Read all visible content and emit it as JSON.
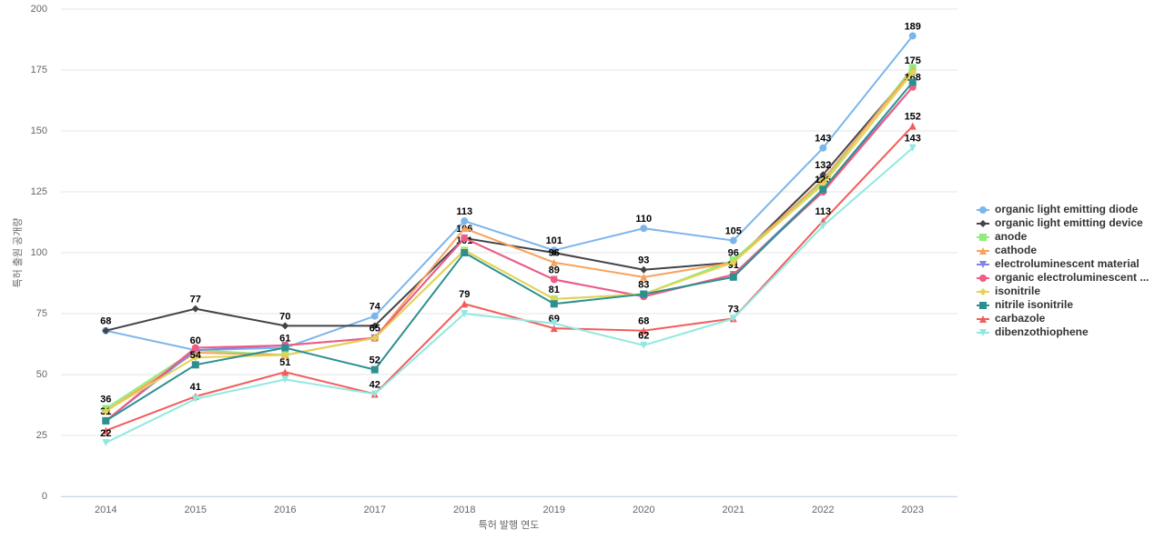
{
  "chart_data": {
    "type": "line",
    "x_label": "특허 발행 연도",
    "y_label": "특허 출원 공개량",
    "categories": [
      "2014",
      "2015",
      "2016",
      "2017",
      "2018",
      "2019",
      "2020",
      "2021",
      "2022",
      "2023"
    ],
    "ylim": [
      0,
      200
    ],
    "yticks": [
      0,
      25,
      50,
      75,
      100,
      125,
      150,
      175,
      200
    ],
    "grid": true,
    "legend": "right",
    "series": [
      {
        "name": "organic light emitting diode",
        "color": "#7cb5ec",
        "values": [
          68,
          60,
          61,
          74,
          113,
          101,
          110,
          105,
          143,
          189
        ]
      },
      {
        "name": "organic light emitting device",
        "color": "#434348",
        "values": [
          68,
          77,
          70,
          70,
          106,
          100,
          93,
          96,
          132,
          175
        ]
      },
      {
        "name": "anode",
        "color": "#90ed7d",
        "values": [
          36,
          60,
          58,
          65,
          101,
          81,
          83,
          97,
          129,
          176
        ]
      },
      {
        "name": "cathode",
        "color": "#f7a35c",
        "values": [
          35,
          59,
          58,
          65,
          110,
          96,
          90,
          96,
          130,
          175
        ]
      },
      {
        "name": "electroluminescent material",
        "color": "#8085e9",
        "values": [
          31,
          60,
          62,
          65,
          106,
          89,
          82,
          91,
          126,
          168
        ]
      },
      {
        "name": "organic electroluminescent ...",
        "color": "#f15c80",
        "values": [
          31,
          61,
          62,
          65,
          106,
          89,
          82,
          91,
          125,
          168
        ]
      },
      {
        "name": "isonitrile",
        "color": "#e4d354",
        "values": [
          35,
          57,
          58,
          65,
          101,
          81,
          83,
          96,
          128,
          174
        ]
      },
      {
        "name": "nitrile isonitrile",
        "color": "#2b908f",
        "values": [
          31,
          54,
          61,
          52,
          100,
          79,
          83,
          90,
          126,
          170
        ]
      },
      {
        "name": "carbazole",
        "color": "#f45b5b",
        "values": [
          27,
          41,
          51,
          42,
          79,
          69,
          68,
          73,
          113,
          152
        ]
      },
      {
        "name": "dibenzothiophene",
        "color": "#91e8e1",
        "values": [
          22,
          40,
          48,
          42,
          75,
          71,
          62,
          73,
          111,
          143
        ]
      }
    ]
  }
}
